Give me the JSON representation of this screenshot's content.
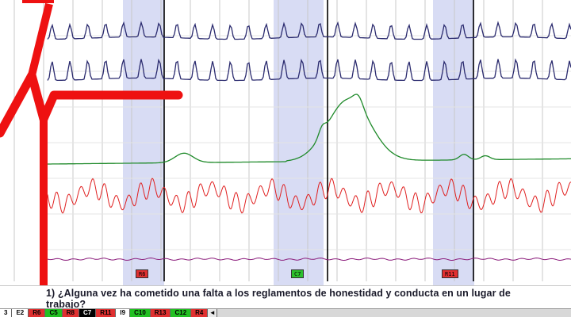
{
  "colors": {
    "respiration": "#2a2a6e",
    "eda": "#1f8a2a",
    "cardio": "#e02020",
    "plethysmograph": "#8a1a7a",
    "logo_red": "#ee1111",
    "highlight_band": "#d8dcf4",
    "gridline": "#c8c8c8",
    "event_line": "#000000"
  },
  "channels": [
    {
      "name": "upper-respiration",
      "color": "#2a2a6e"
    },
    {
      "name": "lower-respiration",
      "color": "#2a2a6e"
    },
    {
      "name": "electrodermal",
      "color": "#1f8a2a"
    },
    {
      "name": "cardio",
      "color": "#e02020"
    },
    {
      "name": "plethysmograph",
      "color": "#8a1a7a"
    }
  ],
  "markers": [
    {
      "label": "R6",
      "color": "#e03030"
    },
    {
      "label": "C7",
      "color": "#2cc02c"
    },
    {
      "label": "R11",
      "color": "#e03030"
    }
  ],
  "question": "¿Alguna vez ha cometido una falta a los reglamentos de honestidad y conducta en un lugar de trabajo?",
  "question_display_prefix": "1) ",
  "tabs": [
    {
      "label": "3",
      "bg": "#ffffff",
      "fg": "#000000"
    },
    {
      "label": "E2",
      "bg": "#ffffff",
      "fg": "#000000"
    },
    {
      "label": "R6",
      "bg": "#e03030",
      "fg": "#000000"
    },
    {
      "label": "C5",
      "bg": "#22c022",
      "fg": "#000000"
    },
    {
      "label": "R8",
      "bg": "#e03030",
      "fg": "#000000"
    },
    {
      "label": "C7",
      "bg": "#000000",
      "fg": "#ffffff"
    },
    {
      "label": "R11",
      "bg": "#e03030",
      "fg": "#000000"
    },
    {
      "label": "I9",
      "bg": "#ffffff",
      "fg": "#000000"
    },
    {
      "label": "C10",
      "bg": "#22c022",
      "fg": "#000000"
    },
    {
      "label": "R13",
      "bg": "#e03030",
      "fg": "#000000"
    },
    {
      "label": "C12",
      "bg": "#22c022",
      "fg": "#000000"
    },
    {
      "label": "R4",
      "bg": "#e03030",
      "fg": "#000000"
    }
  ],
  "nav": {
    "next_icon": "arrow-left-icon",
    "next_label": "◄"
  }
}
